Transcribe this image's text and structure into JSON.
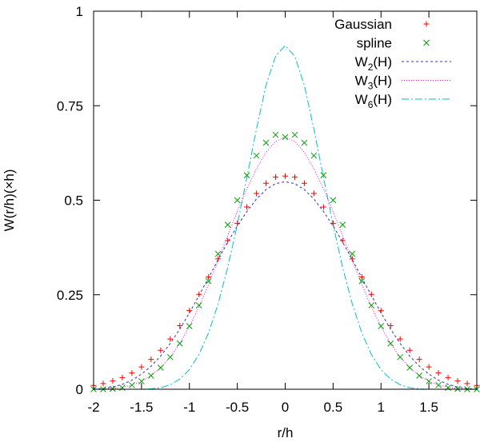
{
  "chart_data": {
    "type": "line",
    "xlabel": "r/h",
    "ylabel": "W(r/h)(×h)",
    "xlim": [
      -2,
      2
    ],
    "ylim": [
      0,
      1
    ],
    "grid": false,
    "legend_position": "top-right",
    "x_ticks": [
      {
        "value": -2,
        "label": "-2"
      },
      {
        "value": -1.5,
        "label": "-1.5"
      },
      {
        "value": -1,
        "label": "-1"
      },
      {
        "value": -0.5,
        "label": "-0.5"
      },
      {
        "value": 0,
        "label": "0"
      },
      {
        "value": 0.5,
        "label": "0.5"
      },
      {
        "value": 1,
        "label": "1"
      },
      {
        "value": 1.5,
        "label": "1.5"
      }
    ],
    "y_ticks": [
      {
        "value": 0,
        "label": "0"
      },
      {
        "value": 0.25,
        "label": "0.25"
      },
      {
        "value": 0.5,
        "label": "0.5"
      },
      {
        "value": 0.75,
        "label": "0.75"
      },
      {
        "value": 1,
        "label": "1"
      }
    ],
    "series": [
      {
        "name": "Gaussian",
        "style": "points",
        "marker": "plus",
        "color": "#ff0000",
        "x": [
          -2.0,
          -1.9,
          -1.8,
          -1.7,
          -1.6,
          -1.5,
          -1.4,
          -1.3,
          -1.2,
          -1.1,
          -1.0,
          -0.9,
          -0.8,
          -0.7,
          -0.6,
          -0.5,
          -0.4,
          -0.3,
          -0.2,
          -0.1,
          0.0,
          0.1,
          0.2,
          0.3,
          0.4,
          0.5,
          0.6,
          0.7,
          0.8,
          0.9,
          1.0,
          1.1,
          1.2,
          1.3,
          1.4,
          1.5,
          1.6,
          1.7,
          1.8,
          1.9,
          2.0
        ],
        "y": [
          0.01,
          0.015,
          0.022,
          0.031,
          0.043,
          0.059,
          0.079,
          0.103,
          0.133,
          0.168,
          0.208,
          0.251,
          0.297,
          0.345,
          0.393,
          0.439,
          0.482,
          0.518,
          0.545,
          0.561,
          0.564,
          0.561,
          0.545,
          0.518,
          0.482,
          0.439,
          0.393,
          0.345,
          0.297,
          0.251,
          0.208,
          0.168,
          0.133,
          0.103,
          0.079,
          0.059,
          0.043,
          0.031,
          0.022,
          0.015,
          0.01
        ]
      },
      {
        "name": "spline",
        "style": "points",
        "marker": "cross",
        "color": "#00a000",
        "x": [
          -2.0,
          -1.9,
          -1.8,
          -1.7,
          -1.6,
          -1.5,
          -1.4,
          -1.3,
          -1.2,
          -1.1,
          -1.0,
          -0.9,
          -0.8,
          -0.7,
          -0.6,
          -0.5,
          -0.4,
          -0.3,
          -0.2,
          -0.1,
          0.0,
          0.1,
          0.2,
          0.3,
          0.4,
          0.5,
          0.6,
          0.7,
          0.8,
          0.9,
          1.0,
          1.1,
          1.2,
          1.3,
          1.4,
          1.5,
          1.6,
          1.7,
          1.8,
          1.9,
          2.0
        ],
        "y": [
          0.0,
          0.0,
          0.001,
          0.004,
          0.011,
          0.021,
          0.036,
          0.057,
          0.085,
          0.121,
          0.167,
          0.222,
          0.286,
          0.358,
          0.435,
          0.5,
          0.566,
          0.618,
          0.652,
          0.673,
          0.667,
          0.673,
          0.652,
          0.618,
          0.566,
          0.5,
          0.435,
          0.358,
          0.286,
          0.222,
          0.167,
          0.121,
          0.085,
          0.057,
          0.036,
          0.021,
          0.011,
          0.004,
          0.001,
          0.0,
          0.0
        ]
      },
      {
        "name": "W2(H)",
        "name_main": "W",
        "name_sub": "2",
        "name_tail": "(H)",
        "style": "dashed-line",
        "color": "#3030c0",
        "x": [
          -2.0,
          -1.9,
          -1.8,
          -1.7,
          -1.6,
          -1.5,
          -1.4,
          -1.3,
          -1.2,
          -1.1,
          -1.0,
          -0.9,
          -0.8,
          -0.7,
          -0.6,
          -0.5,
          -0.4,
          -0.3,
          -0.2,
          -0.1,
          0.0,
          0.1,
          0.2,
          0.3,
          0.4,
          0.5,
          0.6,
          0.7,
          0.8,
          0.9,
          1.0,
          1.1,
          1.2,
          1.3,
          1.4,
          1.5,
          1.6,
          1.7,
          1.8,
          1.9,
          2.0
        ],
        "y": [
          0.0,
          0.002,
          0.006,
          0.013,
          0.024,
          0.04,
          0.061,
          0.088,
          0.121,
          0.159,
          0.202,
          0.248,
          0.295,
          0.343,
          0.389,
          0.432,
          0.47,
          0.503,
          0.528,
          0.544,
          0.549,
          0.544,
          0.528,
          0.503,
          0.47,
          0.432,
          0.389,
          0.343,
          0.295,
          0.248,
          0.202,
          0.159,
          0.121,
          0.088,
          0.061,
          0.04,
          0.024,
          0.013,
          0.006,
          0.002,
          0.0
        ]
      },
      {
        "name": "W3(H)",
        "name_main": "W",
        "name_sub": "3",
        "name_tail": "(H)",
        "style": "dotted-line",
        "color": "#ff00ff",
        "x": [
          -2.0,
          -1.9,
          -1.8,
          -1.7,
          -1.6,
          -1.5,
          -1.4,
          -1.3,
          -1.2,
          -1.1,
          -1.0,
          -0.9,
          -0.8,
          -0.7,
          -0.6,
          -0.5,
          -0.4,
          -0.3,
          -0.2,
          -0.1,
          0.0,
          0.1,
          0.2,
          0.3,
          0.4,
          0.5,
          0.6,
          0.7,
          0.8,
          0.9,
          1.0,
          1.1,
          1.2,
          1.3,
          1.4,
          1.5,
          1.6,
          1.7,
          1.8,
          1.9,
          2.0
        ],
        "y": [
          0.0,
          0.0,
          0.002,
          0.005,
          0.011,
          0.021,
          0.036,
          0.057,
          0.085,
          0.121,
          0.166,
          0.218,
          0.277,
          0.341,
          0.406,
          0.47,
          0.53,
          0.583,
          0.627,
          0.656,
          0.667,
          0.656,
          0.627,
          0.583,
          0.53,
          0.47,
          0.406,
          0.341,
          0.277,
          0.218,
          0.166,
          0.121,
          0.085,
          0.057,
          0.036,
          0.021,
          0.011,
          0.005,
          0.002,
          0.0,
          0.0
        ]
      },
      {
        "name": "W6(H)",
        "name_main": "W",
        "name_sub": "6",
        "name_tail": "(H)",
        "style": "dash-dot-line",
        "color": "#00c0d0",
        "x": [
          -2.0,
          -1.9,
          -1.8,
          -1.7,
          -1.6,
          -1.5,
          -1.4,
          -1.3,
          -1.2,
          -1.1,
          -1.0,
          -0.9,
          -0.8,
          -0.7,
          -0.6,
          -0.5,
          -0.4,
          -0.3,
          -0.2,
          -0.1,
          0.0,
          0.1,
          0.2,
          0.3,
          0.4,
          0.5,
          0.6,
          0.7,
          0.8,
          0.9,
          1.0,
          1.1,
          1.2,
          1.3,
          1.4,
          1.5,
          1.6,
          1.7,
          1.8,
          1.9,
          2.0
        ],
        "y": [
          0.0,
          0.0,
          0.0,
          0.0,
          0.0,
          0.0,
          0.001,
          0.004,
          0.012,
          0.027,
          0.052,
          0.092,
          0.149,
          0.226,
          0.322,
          0.435,
          0.56,
          0.688,
          0.804,
          0.881,
          0.909,
          0.881,
          0.804,
          0.688,
          0.56,
          0.435,
          0.322,
          0.226,
          0.149,
          0.092,
          0.052,
          0.027,
          0.012,
          0.004,
          0.001,
          0.0,
          0.0,
          0.0,
          0.0,
          0.0,
          0.0
        ]
      }
    ]
  }
}
